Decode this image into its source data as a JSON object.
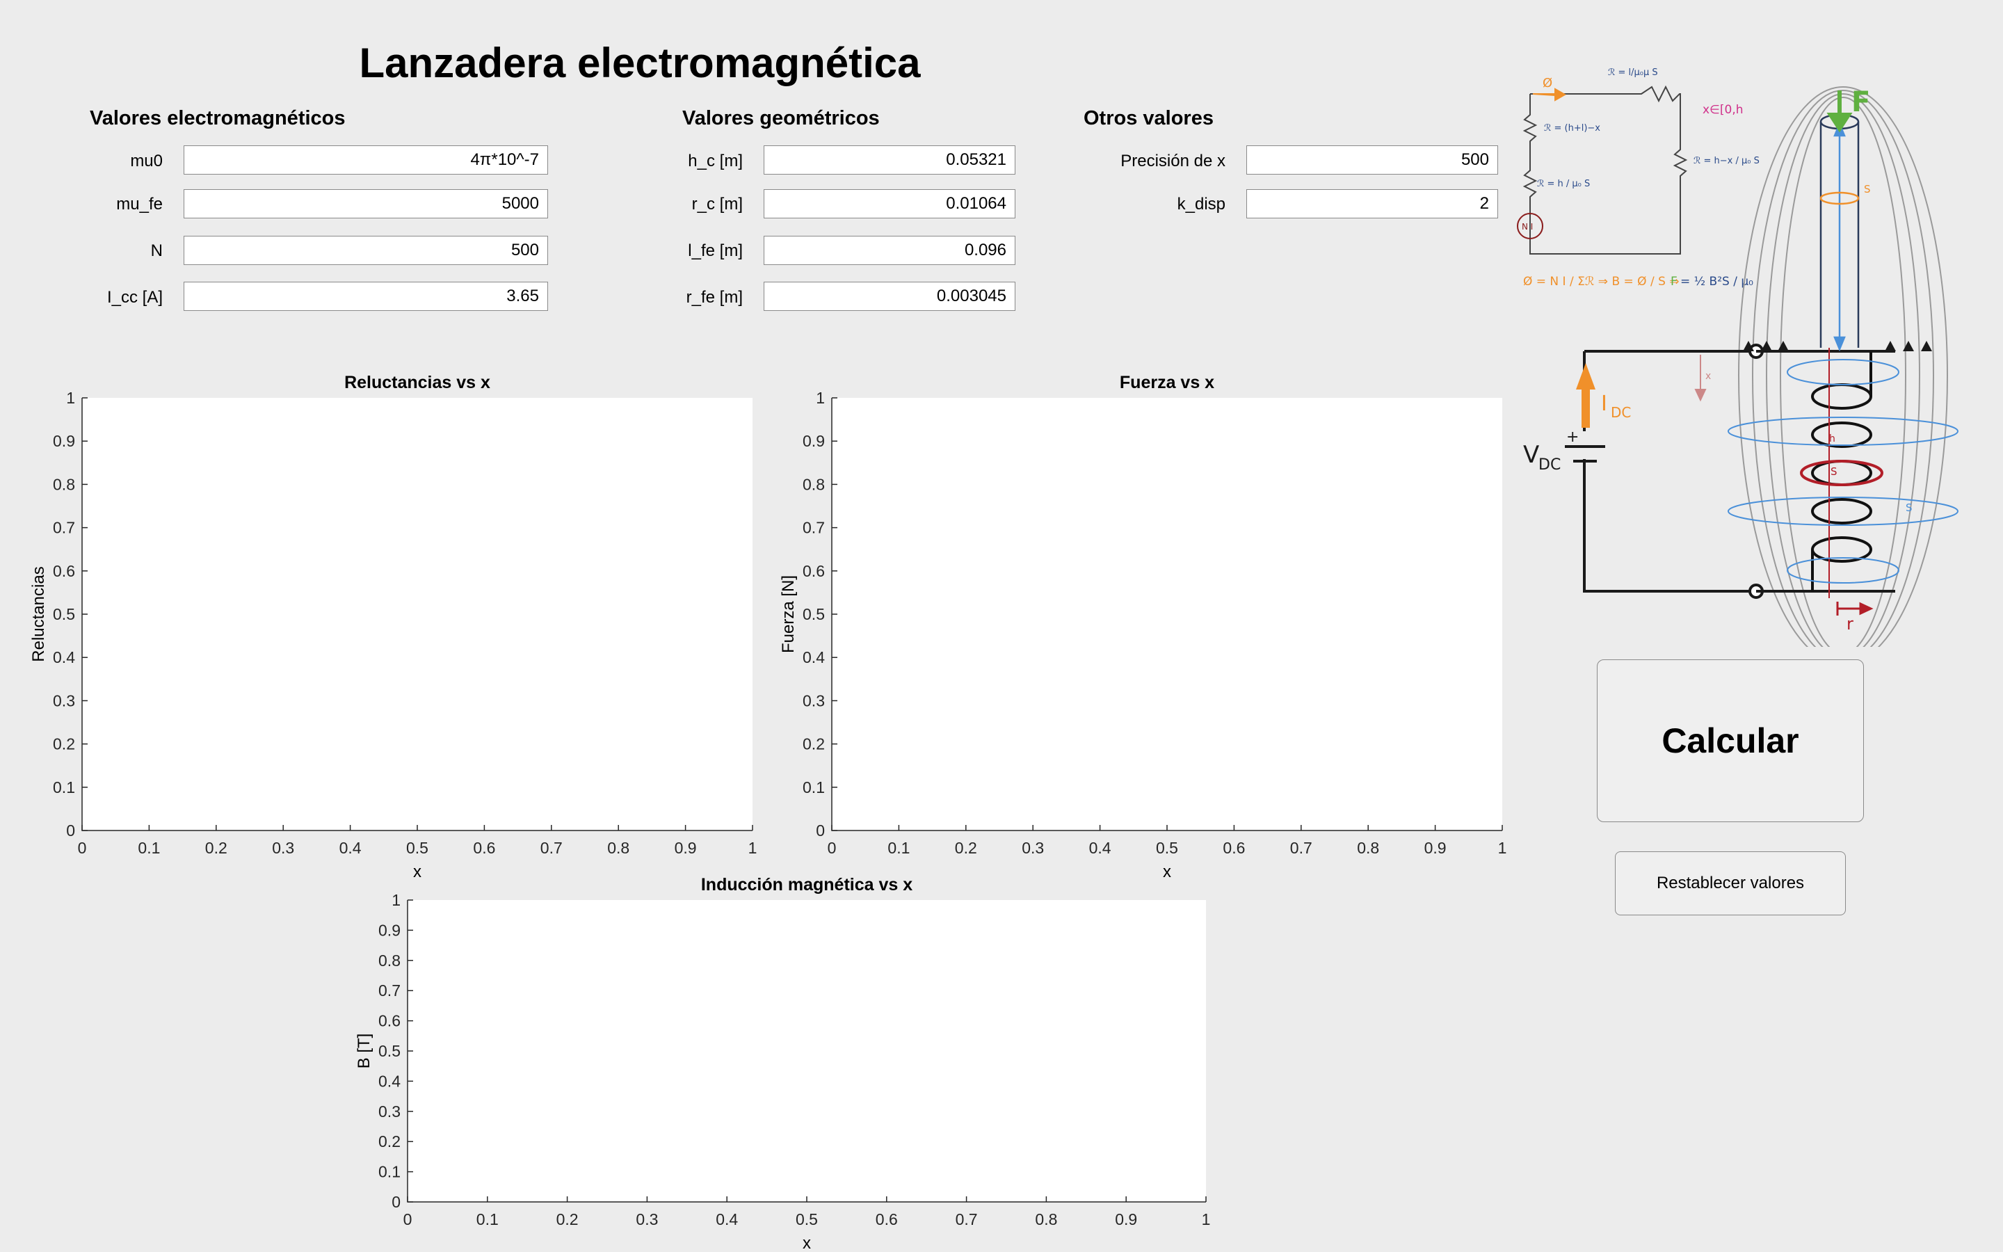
{
  "title": "Lanzadera electromagnética",
  "sections": {
    "electromagnetic": "Valores electromagnéticos",
    "geometric": "Valores geométricos",
    "other": "Otros valores"
  },
  "fields": {
    "mu0": {
      "label": "mu0",
      "value": "4π*10^-7"
    },
    "mu_fe": {
      "label": "mu_fe",
      "value": "5000"
    },
    "N": {
      "label": "N",
      "value": "500"
    },
    "I_cc": {
      "label": "I_cc [A]",
      "value": "3.65"
    },
    "h_c": {
      "label": "h_c [m]",
      "value": "0.05321"
    },
    "r_c": {
      "label": "r_c [m]",
      "value": "0.01064"
    },
    "l_fe": {
      "label": "l_fe [m]",
      "value": "0.096"
    },
    "r_fe": {
      "label": "r_fe [m]",
      "value": "0.003045"
    },
    "precision_x": {
      "label": "Precisión de x",
      "value": "500"
    },
    "k_disp": {
      "label": "k_disp",
      "value": "2"
    }
  },
  "buttons": {
    "calculate": "Calcular",
    "reset": "Restablecer valores"
  },
  "chart_data": [
    {
      "type": "line",
      "title": "Reluctancias vs x",
      "xlabel": "x",
      "ylabel": "Reluctancias",
      "xlim": [
        0,
        1
      ],
      "ylim": [
        0,
        1
      ],
      "xticks": [
        "0",
        "0.1",
        "0.2",
        "0.3",
        "0.4",
        "0.5",
        "0.6",
        "0.7",
        "0.8",
        "0.9",
        "1"
      ],
      "yticks": [
        "0",
        "0.1",
        "0.2",
        "0.3",
        "0.4",
        "0.5",
        "0.6",
        "0.7",
        "0.8",
        "0.9",
        "1"
      ],
      "series": []
    },
    {
      "type": "line",
      "title": "Fuerza vs x",
      "xlabel": "x",
      "ylabel": "Fuerza [N]",
      "xlim": [
        0,
        1
      ],
      "ylim": [
        0,
        1
      ],
      "xticks": [
        "0",
        "0.1",
        "0.2",
        "0.3",
        "0.4",
        "0.5",
        "0.6",
        "0.7",
        "0.8",
        "0.9",
        "1"
      ],
      "yticks": [
        "0",
        "0.1",
        "0.2",
        "0.3",
        "0.4",
        "0.5",
        "0.6",
        "0.7",
        "0.8",
        "0.9",
        "1"
      ],
      "series": []
    },
    {
      "type": "line",
      "title": "Inducción magnética vs x",
      "xlabel": "x",
      "ylabel": "B [T]",
      "xlim": [
        0,
        1
      ],
      "ylim": [
        0,
        1
      ],
      "xticks": [
        "0",
        "0.1",
        "0.2",
        "0.3",
        "0.4",
        "0.5",
        "0.6",
        "0.7",
        "0.8",
        "0.9",
        "1"
      ],
      "yticks": [
        "0",
        "0.1",
        "0.2",
        "0.3",
        "0.4",
        "0.5",
        "0.6",
        "0.7",
        "0.8",
        "0.9",
        "1"
      ],
      "series": []
    }
  ],
  "diagram": {
    "labels": {
      "force": "F",
      "current": "I",
      "current_sub": "DC",
      "voltage": "V",
      "voltage_sub": "DC",
      "source": "N I",
      "range": "x∈[0,h",
      "x": "x",
      "hc": "h",
      "sc": "S",
      "sdisp": "S",
      "rc": "r",
      "sb": "S",
      "plus": "+"
    },
    "colors": {
      "force": "#5fb040",
      "current": "#f0902a",
      "flux": "#4a90d9",
      "core": "#b21e28",
      "range": "#d0308a",
      "circuit": "#1a1a1a"
    }
  }
}
